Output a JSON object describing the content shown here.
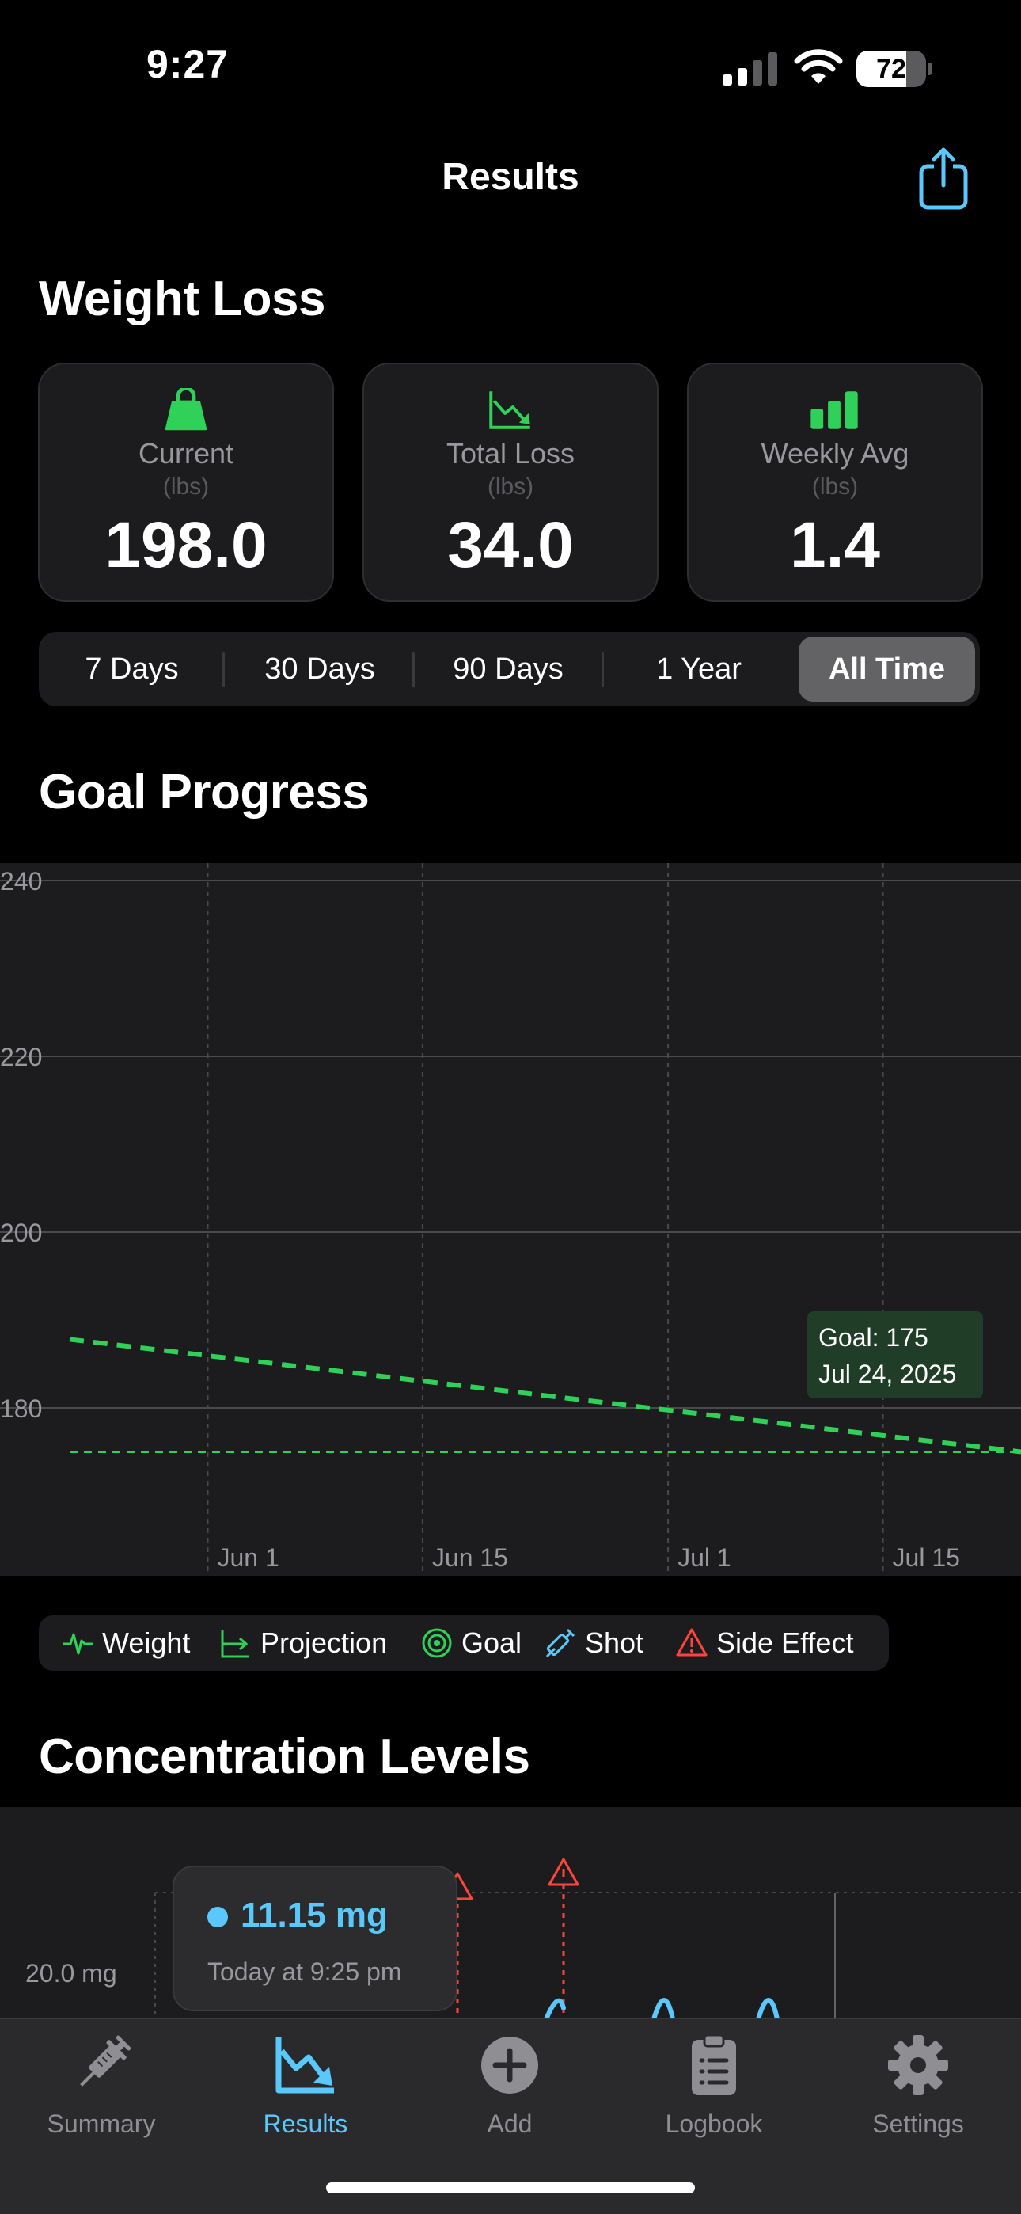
{
  "status_bar": {
    "time": "9:27",
    "battery": "72",
    "battery_level": 0.72
  },
  "nav": {
    "title": "Results"
  },
  "weight_loss": {
    "title": "Weight Loss",
    "cards": [
      {
        "label": "Current",
        "unit": "(lbs)",
        "value": "198.0",
        "icon": "kettlebell-icon"
      },
      {
        "label": "Total Loss",
        "unit": "(lbs)",
        "value": "34.0",
        "icon": "chart-down-icon"
      },
      {
        "label": "Weekly Avg",
        "unit": "(lbs)",
        "value": "1.4",
        "icon": "bar-chart-icon"
      }
    ]
  },
  "ranges": {
    "options": [
      "7 Days",
      "30 Days",
      "90 Days",
      "1 Year",
      "All Time"
    ],
    "selected": "All Time"
  },
  "goal_progress": {
    "title": "Goal Progress",
    "tooltip_line1": "Goal: 175",
    "tooltip_line2": "Jul 24, 2025"
  },
  "chart_data": {
    "type": "line",
    "y_ticks": [
      "240",
      "220",
      "200",
      "180"
    ],
    "ylim": [
      170,
      242
    ],
    "x_ticks": [
      "Jun 1",
      "Jun 15",
      "Jul 1",
      "Jul 15"
    ],
    "x_tick_dates": [
      "2025-06-01",
      "2025-06-15",
      "2025-07-01",
      "2025-07-15"
    ],
    "xlim": [
      "2025-05-23",
      "2025-07-24"
    ],
    "grid": true,
    "series": [
      {
        "name": "Projection",
        "style": "dashed",
        "color": "#30d158",
        "points": [
          {
            "x": "2025-05-23",
            "y": 187.8
          },
          {
            "x": "2025-07-24",
            "y": 175
          }
        ]
      },
      {
        "name": "Goal",
        "style": "dashed",
        "color": "#30d158",
        "points": [
          {
            "x": "2025-05-23",
            "y": 175
          },
          {
            "x": "2025-07-24",
            "y": 175
          }
        ]
      }
    ]
  },
  "legend": [
    {
      "label": "Weight",
      "icon": "waveform-icon",
      "color": "#30d158"
    },
    {
      "label": "Projection",
      "icon": "projection-icon",
      "color": "#30d158"
    },
    {
      "label": "Goal",
      "icon": "target-icon",
      "color": "#30d158"
    },
    {
      "label": "Shot",
      "icon": "syringe-icon",
      "color": "#5ac8fa"
    },
    {
      "label": "Side Effect",
      "icon": "warning-icon",
      "color": "#ff453a"
    }
  ],
  "concentration": {
    "title": "Concentration Levels",
    "tooltip_value": "11.15 mg",
    "tooltip_time": "Today at 9:25 pm",
    "y_label": "20.0 mg"
  },
  "tabs": [
    {
      "label": "Summary",
      "icon": "syringe-icon"
    },
    {
      "label": "Results",
      "icon": "chart-down-icon"
    },
    {
      "label": "Add",
      "icon": "plus-circle-icon"
    },
    {
      "label": "Logbook",
      "icon": "clipboard-icon"
    },
    {
      "label": "Settings",
      "icon": "gear-icon"
    }
  ],
  "active_tab": "Results",
  "colors": {
    "accent": "#5ac8fa",
    "green": "#30d158",
    "red": "#ff453a",
    "background": "#000000",
    "card": "#1c1c1e"
  }
}
